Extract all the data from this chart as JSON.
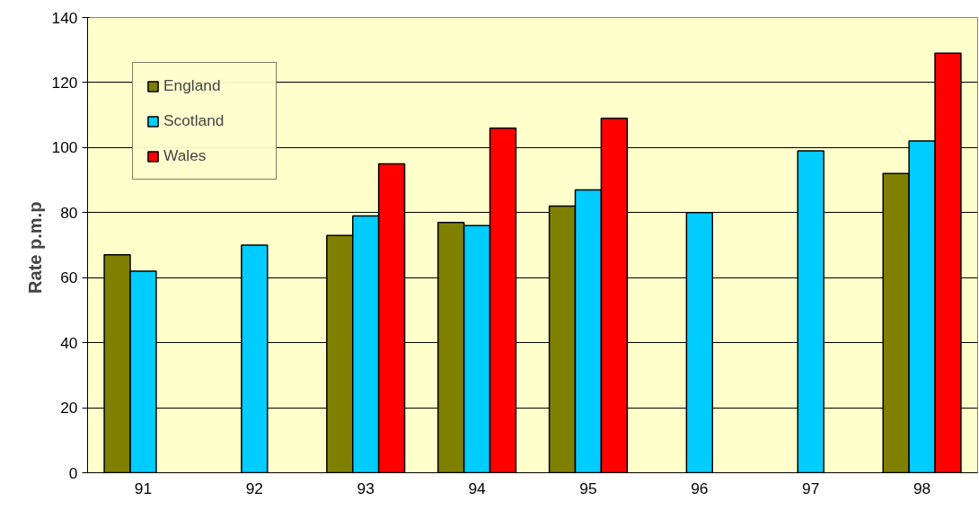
{
  "chart_data": {
    "type": "bar",
    "ylabel": "Rate  p.m.p",
    "categories": [
      "91",
      "92",
      "93",
      "94",
      "95",
      "96",
      "97",
      "98"
    ],
    "series": [
      {
        "name": "England",
        "color": "#808000",
        "values": [
          67,
          null,
          73,
          77,
          82,
          null,
          null,
          92
        ]
      },
      {
        "name": "Scotland",
        "color": "#00ccff",
        "values": [
          62,
          70,
          79,
          76,
          87,
          80,
          99,
          102
        ]
      },
      {
        "name": "Wales",
        "color": "#ff0000",
        "values": [
          null,
          null,
          95,
          106,
          109,
          null,
          null,
          129
        ]
      }
    ],
    "ylim": [
      0,
      140
    ],
    "yticks": [
      0,
      20,
      40,
      60,
      80,
      100,
      120,
      140
    ],
    "grid": "y",
    "legend": "top left"
  }
}
